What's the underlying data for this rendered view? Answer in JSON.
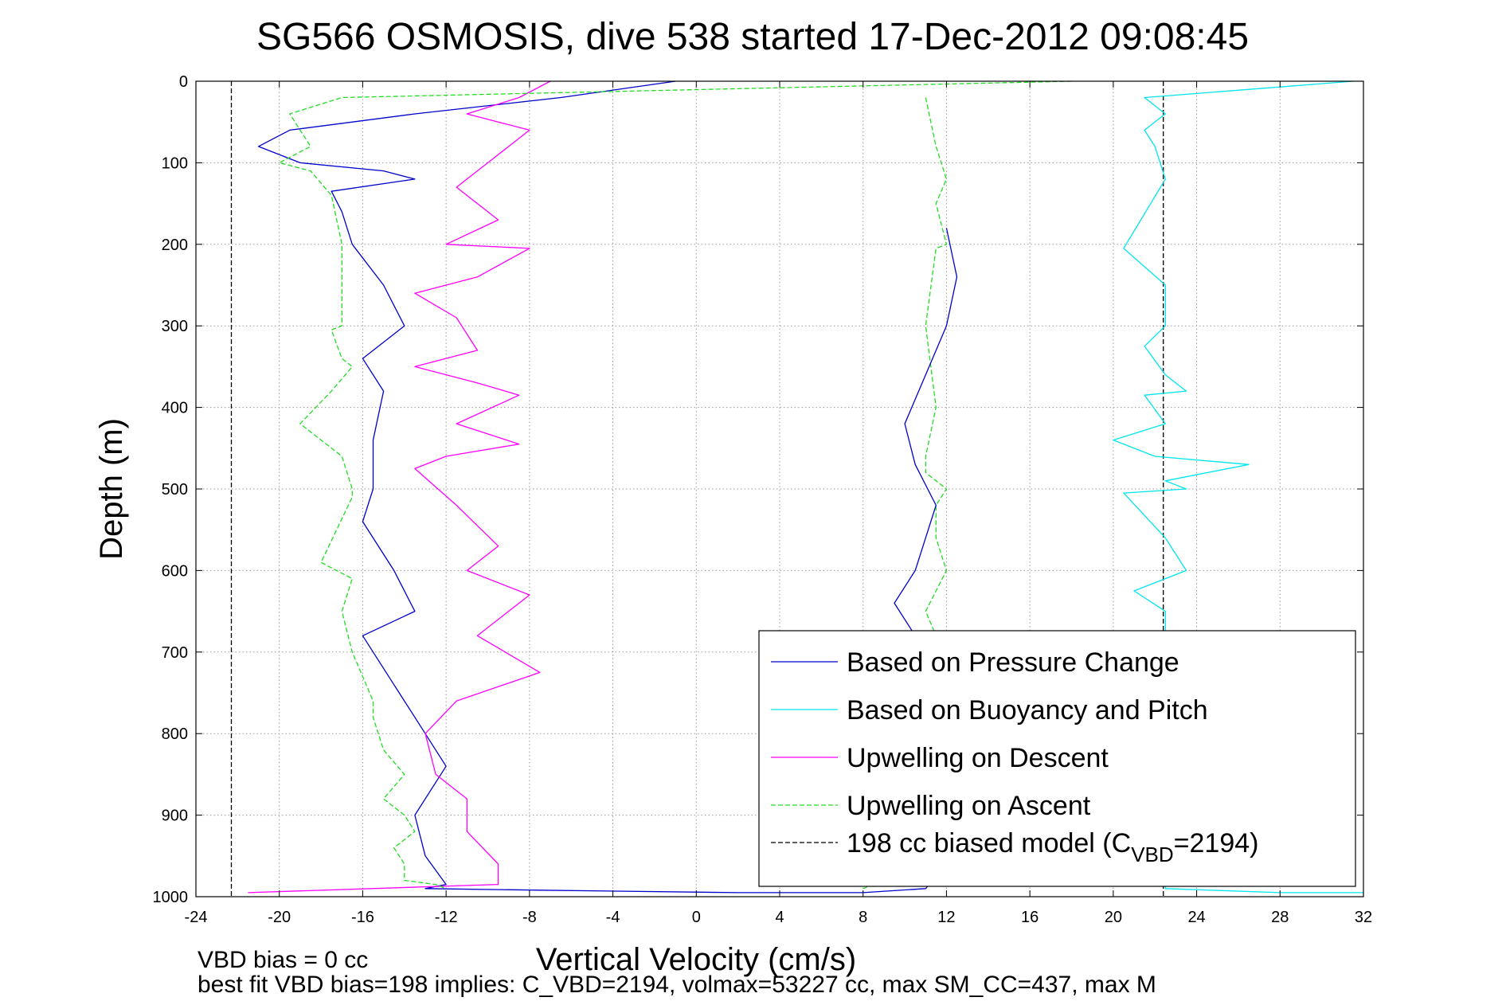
{
  "chart_data": {
    "type": "line",
    "title": "SG566 OSMOSIS, dive 538 started 17-Dec-2012 09:08:45",
    "xlabel": "Vertical Velocity (cm/s)",
    "ylabel": "Depth (m)",
    "xlim": [
      -24,
      32
    ],
    "ylim": [
      0,
      1000
    ],
    "y_reversed": true,
    "grid": true,
    "legend_position": "bottom-right",
    "x_ticks": [
      "-24",
      "-20",
      "-16",
      "-12",
      "-8",
      "-4",
      "0",
      "4",
      "8",
      "12",
      "16",
      "20",
      "24",
      "28",
      "32"
    ],
    "y_ticks": [
      "0",
      "100",
      "200",
      "300",
      "400",
      "500",
      "600",
      "700",
      "800",
      "900",
      "1000"
    ],
    "series": [
      {
        "name": "Based on Pressure Change",
        "color": "#0000cc",
        "style": "solid",
        "x": [
          -1.0,
          -6.5,
          -13.5,
          -19.5,
          -21.0,
          -19.0,
          -15.0,
          -13.5,
          -17.5,
          -17.0,
          -16.5,
          -15.0,
          -14.0,
          -16.0,
          -15.0,
          -15.5,
          -15.5,
          -16.0,
          -14.5,
          -13.5,
          -16.0,
          -14.5,
          -13.5,
          -12.0,
          -13.5,
          -13.0,
          -12.0,
          -13.0,
          -7.5,
          2.0,
          8.0,
          11.0,
          12.0,
          10.0,
          10.5,
          11.0,
          9.5,
          10.5,
          11.5,
          10.5,
          10.0,
          11.0,
          12.0,
          12.5,
          12.0
        ],
        "y": [
          0,
          20,
          40,
          60,
          80,
          100,
          110,
          120,
          135,
          160,
          200,
          250,
          300,
          340,
          380,
          440,
          500,
          540,
          600,
          650,
          680,
          740,
          780,
          840,
          900,
          950,
          985,
          990,
          992,
          995,
          995,
          990,
          960,
          820,
          780,
          700,
          640,
          600,
          520,
          470,
          420,
          360,
          300,
          240,
          180
        ]
      },
      {
        "name": "Based on Buoyancy and Pitch",
        "color": "#00e5ee",
        "style": "solid",
        "x": [
          31.5,
          21.5,
          22.5,
          21.5,
          22.0,
          22.5,
          20.5,
          22.5,
          22.5,
          21.5,
          22.5,
          23.5,
          21.5,
          22.5,
          20.0,
          22.0,
          26.5,
          22.5,
          23.5,
          20.5,
          22.5,
          23.5,
          21.0,
          22.5,
          22.5,
          28.0,
          32.0
        ],
        "y": [
          0,
          20,
          40,
          60,
          80,
          120,
          205,
          250,
          300,
          325,
          360,
          380,
          385,
          420,
          440,
          460,
          470,
          490,
          500,
          505,
          560,
          600,
          625,
          650,
          990,
          995,
          995
        ]
      },
      {
        "name": "Upwelling on Descent",
        "color": "#ff00ff",
        "style": "solid",
        "x": [
          -7.0,
          -8.5,
          -11.0,
          -8.0,
          -10.0,
          -11.5,
          -9.5,
          -12.0,
          -8.0,
          -10.5,
          -13.5,
          -11.5,
          -10.5,
          -13.5,
          -10.5,
          -8.5,
          -11.5,
          -8.5,
          -12.0,
          -13.5,
          -11.5,
          -9.5,
          -11.0,
          -8.0,
          -10.5,
          -7.5,
          -11.5,
          -13.0,
          -12.5,
          -11.0,
          -11.0,
          -9.5,
          -9.5,
          -21.5
        ],
        "y": [
          0,
          20,
          40,
          60,
          100,
          130,
          170,
          200,
          205,
          240,
          260,
          290,
          330,
          350,
          370,
          385,
          420,
          445,
          460,
          475,
          520,
          570,
          600,
          630,
          680,
          725,
          760,
          800,
          850,
          880,
          920,
          960,
          985,
          995
        ]
      },
      {
        "name": "Upwelling on Ascent",
        "color": "#22dd22",
        "style": "dashed",
        "x": [
          18.0,
          -17.0,
          -19.5,
          -18.5,
          -20.0,
          -18.5,
          -17.5,
          -17.0,
          -17.0,
          -17.0,
          -17.5,
          -17.0,
          -16.5,
          -17.5,
          -19.0,
          -17.0,
          -16.5,
          -16.5,
          -18.0,
          -16.5,
          -17.0,
          -16.5,
          -15.5,
          -15.5,
          -15.0,
          -14.0,
          -15.0,
          -14.0,
          -13.5,
          -14.5,
          -14.0,
          -14.0,
          -12.5,
          -12.0
        ],
        "y": [
          0,
          20,
          40,
          80,
          100,
          110,
          140,
          200,
          250,
          300,
          305,
          340,
          350,
          380,
          420,
          460,
          500,
          510,
          590,
          610,
          650,
          700,
          760,
          780,
          820,
          850,
          880,
          900,
          920,
          940,
          960,
          980,
          985,
          990
        ]
      },
      {
        "name": "198 cc biased model (C",
        "name_sub": "VBD",
        "name_suffix": "=2194)",
        "color": "#000000",
        "style": "dashed",
        "x": [
          -22.3,
          -22.3
        ],
        "y": [
          0,
          1000
        ]
      }
    ],
    "extra_lines": [
      {
        "color": "#000000",
        "style": "dashed",
        "x": [
          22.4,
          22.4
        ],
        "y": [
          0,
          1000
        ]
      },
      {
        "color": "#22dd22",
        "style": "dashed",
        "x": [
          11.0,
          11.5,
          12.0,
          11.5,
          12.0,
          11.5,
          11.0,
          11.5,
          11.0,
          11.0,
          12.0,
          11.5,
          11.5,
          12.0,
          11.0,
          11.5,
          11.0,
          8.0
        ],
        "y": [
          20,
          80,
          120,
          150,
          200,
          205,
          300,
          400,
          460,
          480,
          500,
          520,
          560,
          600,
          650,
          680,
          960,
          990
        ]
      }
    ]
  },
  "annotations": {
    "line1": "VBD bias = 0 cc",
    "line2": "best fit VBD bias=198 implies: C_VBD=2194, volmax=53227 cc, max SM_CC=437, max M"
  }
}
